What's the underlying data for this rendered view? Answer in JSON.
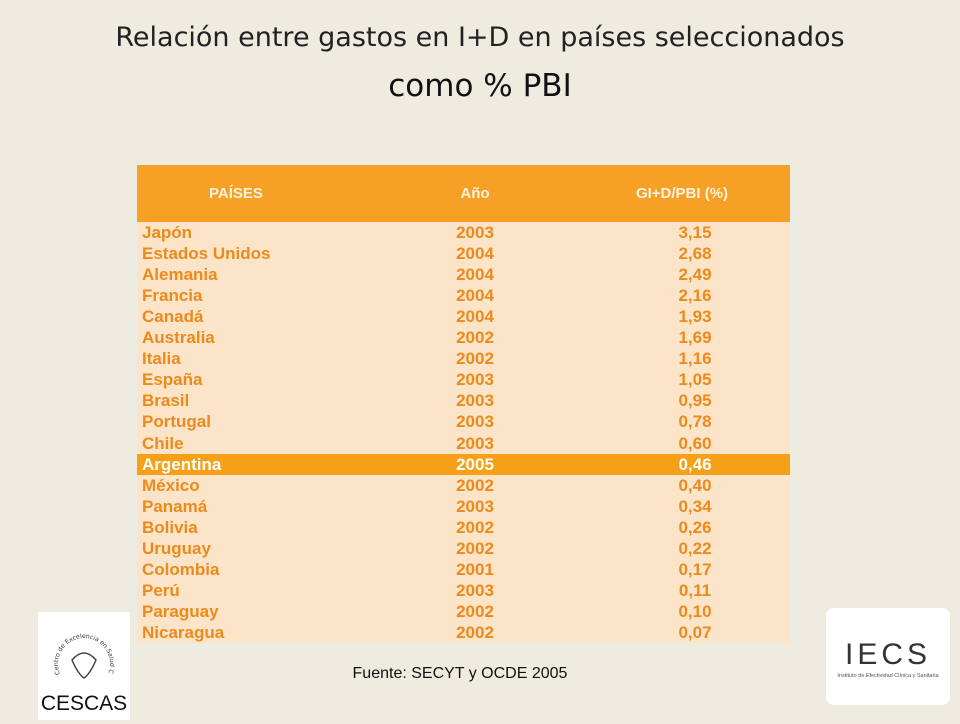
{
  "header": {
    "title_line1": "Relación entre gastos en I+D en países seleccionados",
    "title_line2": "como % PBI"
  },
  "table": {
    "columns": [
      "PAÍSES",
      "Año",
      "GI+D/PBI (%)"
    ],
    "rows": [
      [
        "Japón",
        "2003",
        "3,15"
      ],
      [
        "Estados Unidos",
        "2004",
        "2,68"
      ],
      [
        "Alemania",
        "2004",
        "2,49"
      ],
      [
        "Francia",
        "2004",
        "2,16"
      ],
      [
        "Canadá",
        "2004",
        "1,93"
      ],
      [
        "Australia",
        "2002",
        "1,69"
      ],
      [
        "Italia",
        "2002",
        "1,16"
      ],
      [
        "España",
        "2003",
        "1,05"
      ],
      [
        "Brasil",
        "2003",
        "0,95"
      ],
      [
        "Portugal",
        "2003",
        "0,78"
      ],
      [
        "Chile",
        "2003",
        "0,60"
      ],
      [
        "Argentina",
        "2005",
        "0,46"
      ],
      [
        "México",
        "2002",
        "0,40"
      ],
      [
        "Panamá",
        "2003",
        "0,34"
      ],
      [
        "Bolivia",
        "2002",
        "0,26"
      ],
      [
        "Uruguay",
        "2002",
        "0,22"
      ],
      [
        "Colombia",
        "2001",
        "0,17"
      ],
      [
        "Perú",
        "2003",
        "0,11"
      ],
      [
        "Paraguay",
        "2002",
        "0,10"
      ],
      [
        "Nicaragua",
        "2002",
        "0,07"
      ]
    ],
    "highlight_row": 11
  },
  "source": "Fuente: SECYT y OCDE 2005",
  "logos": {
    "left": {
      "name": "CESCAS",
      "ring": "Centro de Excelencia en Salud Cardiovascular para el Cono Sur"
    },
    "right": {
      "name": "IECS",
      "subtitle": "Instituto de Efectividad Clínica y Sanitaria"
    }
  }
}
